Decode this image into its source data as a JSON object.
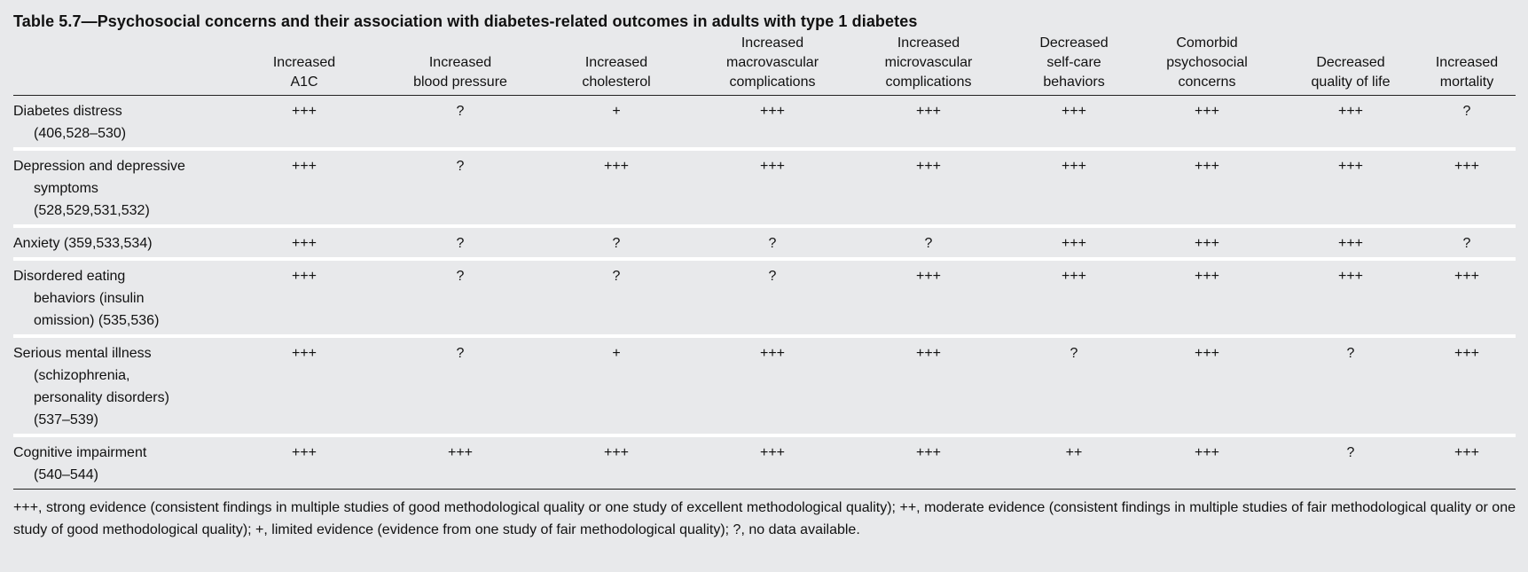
{
  "title": "Table 5.7—Psychosocial concerns and their association with diabetes-related outcomes in adults with type 1 diabetes",
  "columns": [
    "Increased A1C",
    "Increased blood pressure",
    "Increased cholesterol",
    "Increased macrovascular complications",
    "Increased microvascular complications",
    "Decreased self-care behaviors",
    "Comorbid psychosocial concerns",
    "Decreased quality of life",
    "Increased mortality"
  ],
  "column_lines": [
    [
      "Increased",
      "A1C"
    ],
    [
      "Increased",
      "blood pressure"
    ],
    [
      "Increased",
      "cholesterol"
    ],
    [
      "Increased",
      "macrovascular",
      "complications"
    ],
    [
      "Increased",
      "microvascular",
      "complications"
    ],
    [
      "Decreased",
      "self-care",
      "behaviors"
    ],
    [
      "Comorbid",
      "psychosocial",
      "concerns"
    ],
    [
      "Decreased",
      "quality of life"
    ],
    [
      "Increased",
      "mortality"
    ]
  ],
  "rows": [
    {
      "label_first": "Diabetes distress",
      "label_rest": [
        "(406,528–530)"
      ],
      "values": [
        "+++",
        "?",
        "+",
        "+++",
        "+++",
        "+++",
        "+++",
        "+++",
        "?"
      ]
    },
    {
      "label_first": "Depression and depressive",
      "label_rest": [
        "symptoms",
        "(528,529,531,532)"
      ],
      "values": [
        "+++",
        "?",
        "+++",
        "+++",
        "+++",
        "+++",
        "+++",
        "+++",
        "+++"
      ]
    },
    {
      "label_first": "Anxiety (359,533,534)",
      "label_rest": [],
      "values": [
        "+++",
        "?",
        "?",
        "?",
        "?",
        "+++",
        "+++",
        "+++",
        "?"
      ]
    },
    {
      "label_first": "Disordered eating",
      "label_rest": [
        "behaviors (insulin",
        "omission) (535,536)"
      ],
      "values": [
        "+++",
        "?",
        "?",
        "?",
        "+++",
        "+++",
        "+++",
        "+++",
        "+++"
      ]
    },
    {
      "label_first": "Serious mental illness",
      "label_rest": [
        "(schizophrenia,",
        "personality disorders)",
        "(537–539)"
      ],
      "values": [
        "+++",
        "?",
        "+",
        "+++",
        "+++",
        "?",
        "+++",
        "?",
        "+++"
      ]
    },
    {
      "label_first": "Cognitive impairment",
      "label_rest": [
        "(540–544)"
      ],
      "values": [
        "+++",
        "+++",
        "+++",
        "+++",
        "+++",
        "++",
        "+++",
        "?",
        "+++"
      ]
    }
  ],
  "footnote": "+++, strong evidence (consistent findings in multiple studies of good methodological quality or one study of excellent methodological quality); ++, moderate evidence (consistent findings in multiple studies of fair methodological quality or one study of good methodological quality); +, limited evidence (evidence from one study of fair methodological quality); ?, no data available."
}
